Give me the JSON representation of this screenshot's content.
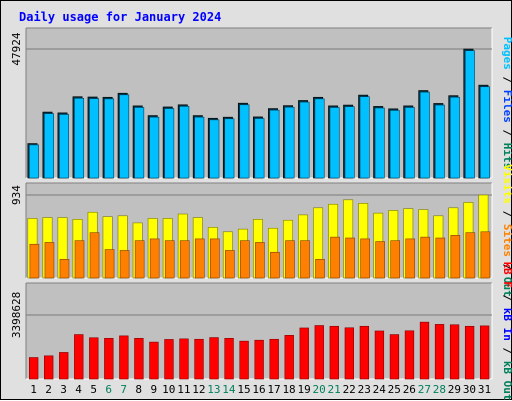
{
  "title": "Daily usage for January 2024",
  "colors": {
    "background": "#e0e0e0",
    "plot_bg": "#c0c0c0",
    "title": "#0000ff",
    "pages": "#00c0ff",
    "files": "#0040ff",
    "hits": "#00805a",
    "visits": "#ffff00",
    "sites": "#ff8000",
    "kb_f": "#ff0000",
    "kb_in": "#0000ff",
    "kb_out": "#00805a",
    "weekend_label": "#00805a",
    "weekday_label": "#000000"
  },
  "chart_data": [
    {
      "type": "bar",
      "panel": "top",
      "scale_label": "47924",
      "ylim": [
        0,
        47924
      ],
      "legend": [
        "Pages",
        "/",
        "Files",
        "/",
        "Hits"
      ],
      "series": [
        {
          "name": "Hits",
          "values": [
            12800,
            24500,
            24200,
            30200,
            30100,
            30000,
            31500,
            26800,
            23200,
            26400,
            27200,
            23200,
            22200,
            22600,
            27800,
            22700,
            25800,
            26900,
            28800,
            30000,
            26800,
            27100,
            30800,
            26600,
            25700,
            26800,
            32500,
            27700,
            30600,
            47924,
            34500
          ]
        },
        {
          "name": "Files",
          "values": [
            12300,
            23900,
            23600,
            29600,
            29500,
            29400,
            30900,
            26200,
            22600,
            25800,
            26600,
            22600,
            21600,
            22000,
            27200,
            22100,
            25200,
            26300,
            28200,
            29400,
            26200,
            26500,
            30200,
            26000,
            25100,
            26200,
            31900,
            27100,
            30000,
            47300,
            33900
          ]
        }
      ]
    },
    {
      "type": "bar",
      "panel": "middle",
      "scale_label": "934",
      "ylim": [
        0,
        934
      ],
      "legend": [
        "Visits",
        "/",
        "Sites",
        "/",
        "Out"
      ],
      "series": [
        {
          "name": "Visits",
          "values": [
            670,
            680,
            680,
            660,
            740,
            690,
            700,
            620,
            670,
            670,
            720,
            680,
            570,
            520,
            550,
            660,
            560,
            650,
            710,
            790,
            830,
            880,
            840,
            730,
            760,
            780,
            770,
            700,
            790,
            850,
            934
          ]
        },
        {
          "name": "Sites",
          "values": [
            380,
            400,
            210,
            420,
            510,
            320,
            310,
            420,
            440,
            420,
            420,
            440,
            440,
            310,
            420,
            400,
            290,
            420,
            420,
            210,
            460,
            450,
            440,
            410,
            420,
            440,
            460,
            450,
            480,
            510,
            520
          ]
        }
      ]
    },
    {
      "type": "bar",
      "panel": "bottom",
      "scale_label": "3398628",
      "ylim": [
        0,
        3398628
      ],
      "legend": [
        "kB",
        "F",
        "/",
        "kB",
        "In",
        "/",
        "kB",
        "Out"
      ],
      "series": [
        {
          "name": "kB F",
          "values": [
            1140000,
            1230000,
            1410000,
            2360000,
            2190000,
            2160000,
            2290000,
            2160000,
            1960000,
            2100000,
            2130000,
            2110000,
            2200000,
            2160000,
            2010000,
            2060000,
            2110000,
            2320000,
            2710000,
            2840000,
            2800000,
            2720000,
            2800000,
            2550000,
            2360000,
            2560000,
            3020000,
            2900000,
            2880000,
            2800000,
            2820000
          ]
        }
      ]
    }
  ],
  "days": [
    "1",
    "2",
    "3",
    "4",
    "5",
    "6",
    "7",
    "8",
    "9",
    "10",
    "11",
    "12",
    "13",
    "14",
    "15",
    "16",
    "17",
    "18",
    "19",
    "20",
    "21",
    "22",
    "23",
    "24",
    "25",
    "26",
    "27",
    "28",
    "29",
    "30",
    "31"
  ],
  "weekend_days": [
    6,
    7,
    13,
    14,
    20,
    21,
    27,
    28
  ]
}
